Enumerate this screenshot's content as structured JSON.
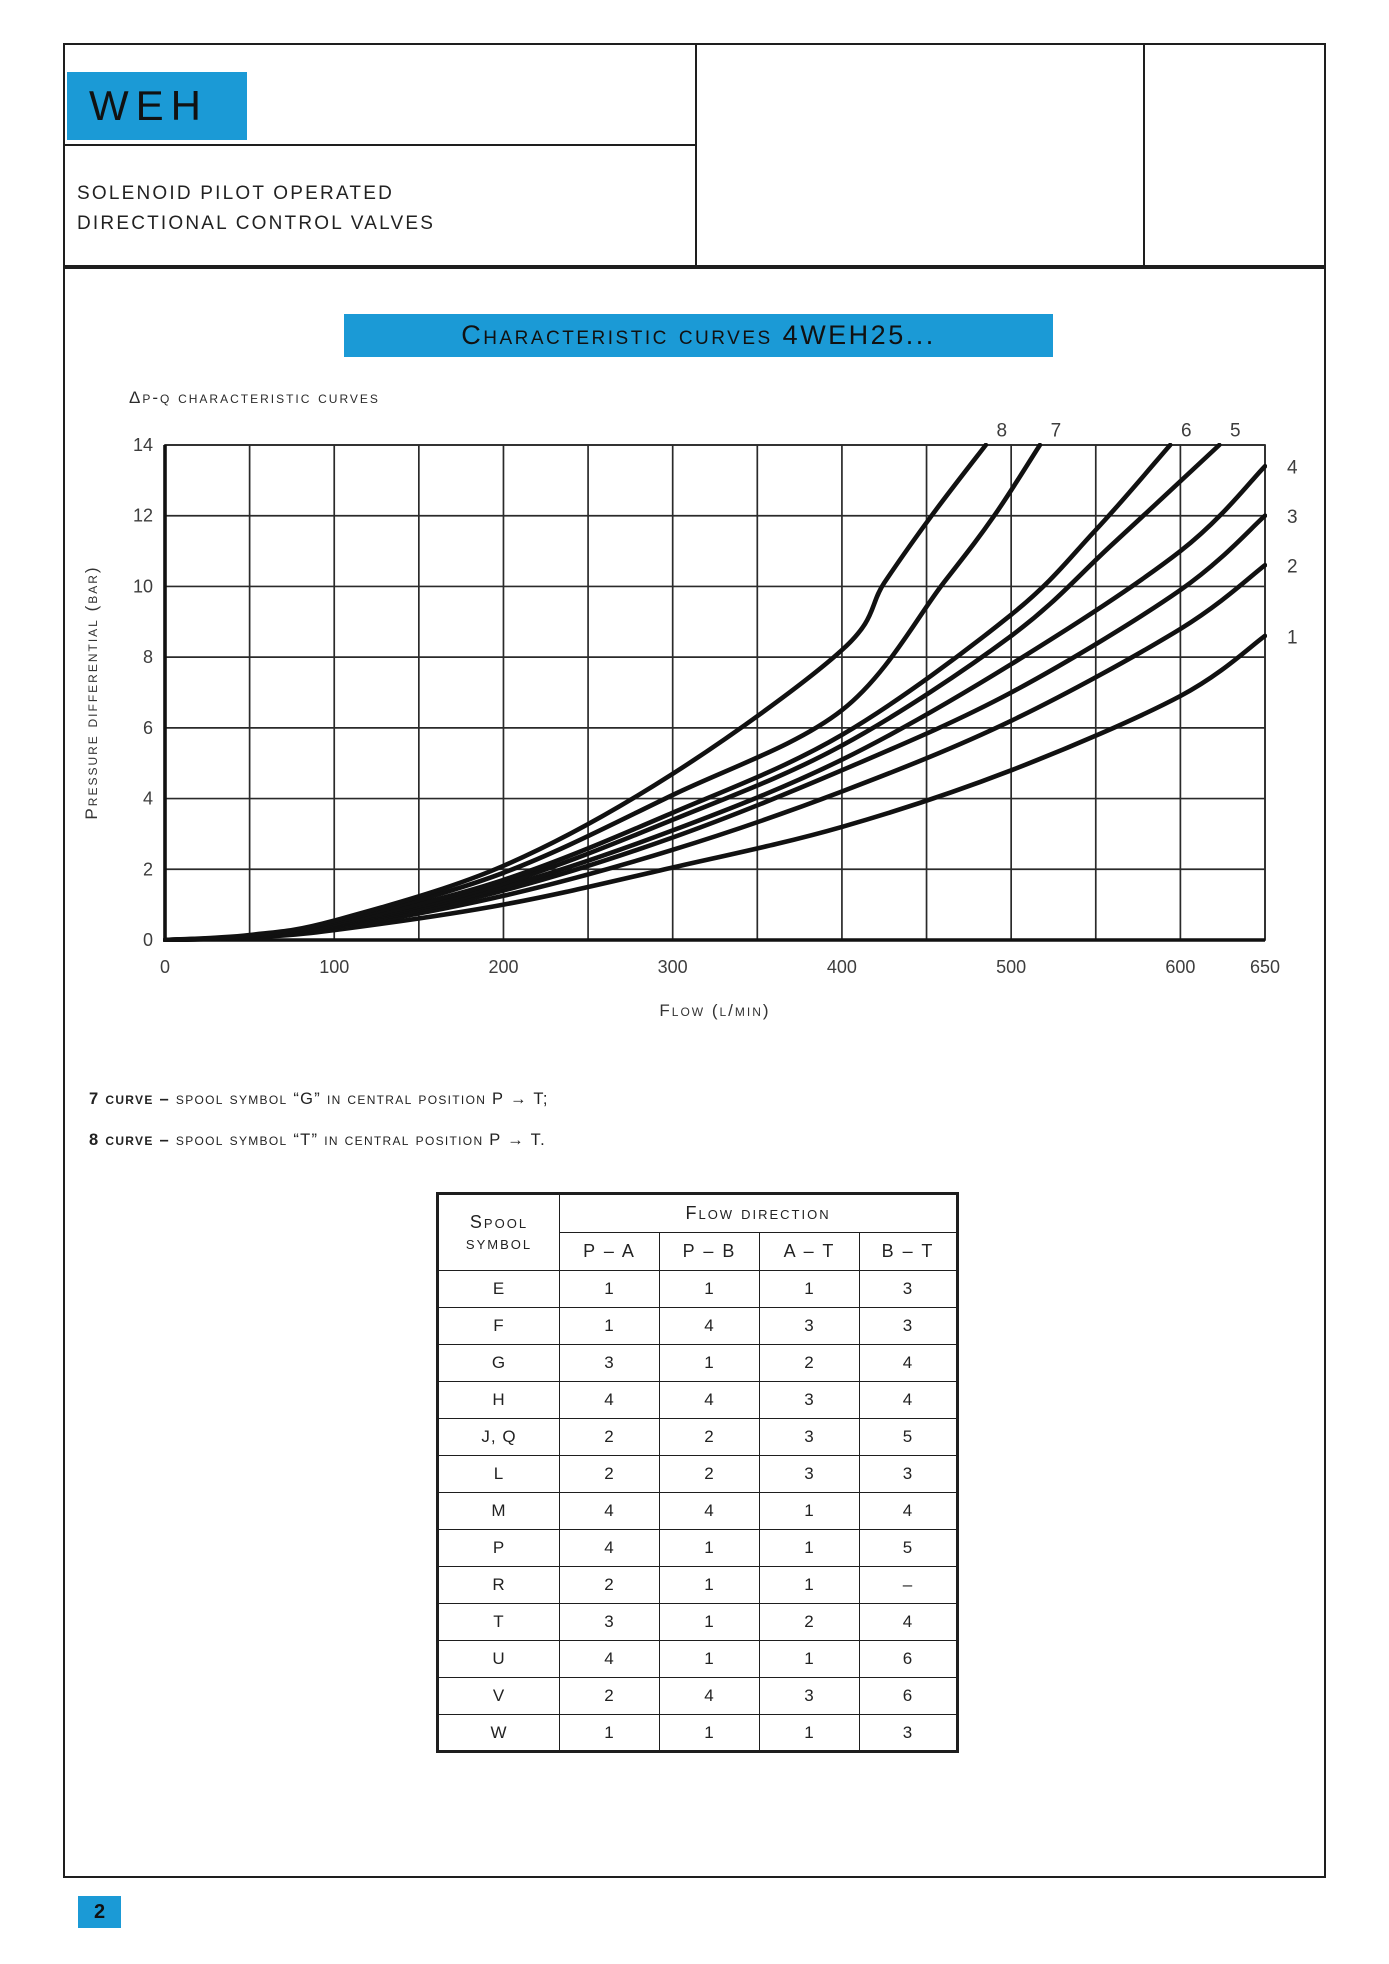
{
  "colors": {
    "accent": "#1b9ad6",
    "line": "#1e1e1e"
  },
  "header": {
    "brand": "WEH",
    "subtitle_line1": "SOLENOID PILOT OPERATED",
    "subtitle_line2": "DIRECTIONAL CONTROL VALVES"
  },
  "section": {
    "banner": "Characteristic curves 4WEH25..."
  },
  "chart_data": {
    "type": "line",
    "title": "Δp-q characteristic curves",
    "xlabel": "Flow (l/min)",
    "ylabel": "Pressure differential (bar)",
    "xlim": [
      0,
      650
    ],
    "ylim": [
      0,
      14
    ],
    "x_ticks": [
      0,
      100,
      200,
      300,
      400,
      500,
      600,
      650
    ],
    "y_ticks": [
      0,
      2,
      4,
      6,
      8,
      10,
      12,
      14
    ],
    "x_grid_step": 50,
    "y_grid_step": 2,
    "grid": "on",
    "series": [
      {
        "name": "1",
        "points": [
          [
            0,
            0
          ],
          [
            50,
            0.07
          ],
          [
            100,
            0.28
          ],
          [
            200,
            1.0
          ],
          [
            300,
            2.05
          ],
          [
            400,
            3.2
          ],
          [
            500,
            4.8
          ],
          [
            600,
            6.9
          ],
          [
            650,
            8.6
          ]
        ]
      },
      {
        "name": "2",
        "points": [
          [
            0,
            0
          ],
          [
            50,
            0.08
          ],
          [
            100,
            0.33
          ],
          [
            200,
            1.25
          ],
          [
            300,
            2.55
          ],
          [
            400,
            4.2
          ],
          [
            500,
            6.2
          ],
          [
            600,
            8.8
          ],
          [
            650,
            10.6
          ]
        ]
      },
      {
        "name": "3",
        "points": [
          [
            0,
            0
          ],
          [
            50,
            0.09
          ],
          [
            100,
            0.37
          ],
          [
            200,
            1.4
          ],
          [
            300,
            2.9
          ],
          [
            400,
            4.8
          ],
          [
            500,
            7.0
          ],
          [
            600,
            9.9
          ],
          [
            650,
            12.0
          ]
        ]
      },
      {
        "name": "4",
        "points": [
          [
            0,
            0
          ],
          [
            50,
            0.1
          ],
          [
            100,
            0.4
          ],
          [
            200,
            1.5
          ],
          [
            300,
            3.1
          ],
          [
            400,
            5.1
          ],
          [
            500,
            7.8
          ],
          [
            600,
            11.0
          ],
          [
            650,
            13.4
          ]
        ]
      },
      {
        "name": "5",
        "points": [
          [
            0,
            0
          ],
          [
            50,
            0.1
          ],
          [
            100,
            0.42
          ],
          [
            200,
            1.6
          ],
          [
            300,
            3.4
          ],
          [
            400,
            5.5
          ],
          [
            500,
            8.6
          ],
          [
            560,
            11.2
          ],
          [
            623,
            14
          ]
        ]
      },
      {
        "name": "6",
        "points": [
          [
            0,
            0
          ],
          [
            50,
            0.11
          ],
          [
            100,
            0.45
          ],
          [
            200,
            1.7
          ],
          [
            300,
            3.6
          ],
          [
            400,
            5.8
          ],
          [
            500,
            9.2
          ],
          [
            550,
            11.6
          ],
          [
            594,
            14
          ]
        ]
      },
      {
        "name": "7",
        "points": [
          [
            0,
            0
          ],
          [
            50,
            0.12
          ],
          [
            100,
            0.5
          ],
          [
            200,
            1.9
          ],
          [
            300,
            4.1
          ],
          [
            400,
            6.5
          ],
          [
            460,
            10.1
          ],
          [
            490,
            12.0
          ],
          [
            517,
            14
          ]
        ]
      },
      {
        "name": "8",
        "points": [
          [
            0,
            0
          ],
          [
            50,
            0.14
          ],
          [
            100,
            0.55
          ],
          [
            200,
            2.1
          ],
          [
            300,
            4.7
          ],
          [
            400,
            8.2
          ],
          [
            425,
            10.1
          ],
          [
            453,
            12.0
          ],
          [
            485,
            14
          ]
        ]
      }
    ]
  },
  "notes": [
    {
      "lead": "7 curve –",
      "text": "spool symbol “G” in central position P → T;"
    },
    {
      "lead": "8 curve –",
      "text": "spool symbol “T” in central position P → T."
    }
  ],
  "table": {
    "col1_line1": "Spool",
    "col1_line2": "symbol",
    "group_header": "Flow direction",
    "flow_cols": [
      "P – A",
      "P – B",
      "A – T",
      "B – T"
    ],
    "rows": [
      {
        "symbol": "E",
        "values": [
          "1",
          "1",
          "1",
          "3"
        ]
      },
      {
        "symbol": "F",
        "values": [
          "1",
          "4",
          "3",
          "3"
        ]
      },
      {
        "symbol": "G",
        "values": [
          "3",
          "1",
          "2",
          "4"
        ]
      },
      {
        "symbol": "H",
        "values": [
          "4",
          "4",
          "3",
          "4"
        ]
      },
      {
        "symbol": "J, Q",
        "values": [
          "2",
          "2",
          "3",
          "5"
        ]
      },
      {
        "symbol": "L",
        "values": [
          "2",
          "2",
          "3",
          "3"
        ]
      },
      {
        "symbol": "M",
        "values": [
          "4",
          "4",
          "1",
          "4"
        ]
      },
      {
        "symbol": "P",
        "values": [
          "4",
          "1",
          "1",
          "5"
        ]
      },
      {
        "symbol": "R",
        "values": [
          "2",
          "1",
          "1",
          "–"
        ]
      },
      {
        "symbol": "T",
        "values": [
          "3",
          "1",
          "2",
          "4"
        ]
      },
      {
        "symbol": "U",
        "values": [
          "4",
          "1",
          "1",
          "6"
        ]
      },
      {
        "symbol": "V",
        "values": [
          "2",
          "4",
          "3",
          "6"
        ]
      },
      {
        "symbol": "W",
        "values": [
          "1",
          "1",
          "1",
          "3"
        ]
      }
    ]
  },
  "page": {
    "number": "2"
  }
}
